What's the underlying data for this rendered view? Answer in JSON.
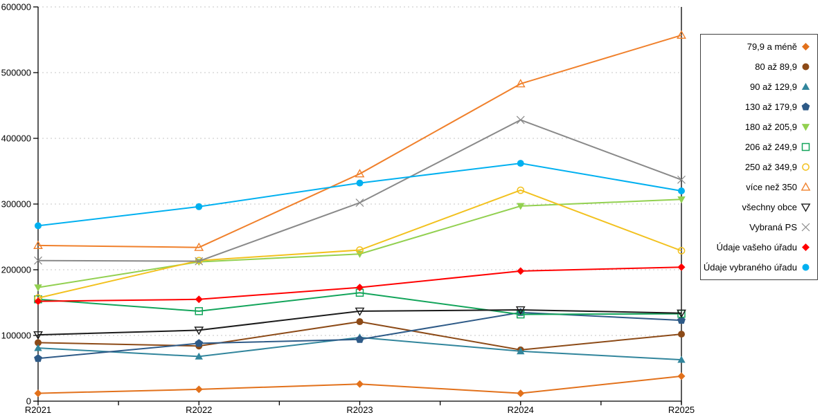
{
  "figure": {
    "background": "#ffffff",
    "grid_color": "#c6c6c6",
    "axis_color": "#000000",
    "legend_border_color": "#3f3f3f"
  },
  "chart_data": {
    "type": "line",
    "title": "",
    "xlabel": "",
    "ylabel": "",
    "x": [
      "R2021",
      "R2022",
      "R2023",
      "R2024",
      "R2025"
    ],
    "ylim": [
      0,
      600000
    ],
    "ytick_step": 100000,
    "y_tick_labels": [
      "0",
      "100000",
      "200000",
      "300000",
      "400000",
      "500000",
      "600000"
    ],
    "grid": "horizontal-dashed",
    "legend_position": "right-box",
    "series": [
      {
        "name": "79,9 a méně",
        "color": "#E2711B",
        "marker": "diamond-filled",
        "values": [
          12000,
          18000,
          26000,
          12000,
          38000
        ]
      },
      {
        "name": "80 až 89,9",
        "color": "#8C4A17",
        "marker": "circle-filled",
        "values": [
          89000,
          84000,
          121000,
          78000,
          102000
        ]
      },
      {
        "name": "90 až 129,9",
        "color": "#31859C",
        "marker": "triangle-up-filled",
        "values": [
          81000,
          68000,
          97000,
          76000,
          63000
        ]
      },
      {
        "name": "130 až 179,9",
        "color": "#2E5A87",
        "marker": "pentagon-filled",
        "values": [
          65000,
          88000,
          94000,
          135000,
          123000
        ]
      },
      {
        "name": "180 až 205,9",
        "color": "#92D050",
        "marker": "triangle-down-filled",
        "values": [
          173000,
          212000,
          224000,
          297000,
          307000
        ]
      },
      {
        "name": "206 až 249,9",
        "color": "#12A45A",
        "marker": "square-open",
        "values": [
          155000,
          137000,
          165000,
          132000,
          133000
        ]
      },
      {
        "name": "250 až 349,9",
        "color": "#F2C11E",
        "marker": "circle-open",
        "values": [
          157000,
          214000,
          230000,
          321000,
          229000
        ]
      },
      {
        "name": "více než 350",
        "color": "#F0802B",
        "marker": "triangle-up-open",
        "values": [
          237000,
          234000,
          346000,
          483000,
          557000
        ]
      },
      {
        "name": "všechny obce",
        "color": "#1A1A1A",
        "marker": "triangle-down-open",
        "values": [
          101000,
          108000,
          137000,
          139000,
          134000
        ]
      },
      {
        "name": "Vybraná PS",
        "color": "#898989",
        "marker": "x",
        "values": [
          214000,
          213000,
          302000,
          428000,
          337000
        ]
      },
      {
        "name": "Údaje vašeho úřadu",
        "color": "#FF0000",
        "marker": "diamond-filled",
        "values": [
          152000,
          155000,
          173000,
          198000,
          204000
        ]
      },
      {
        "name": "Údaje vybraného úřadu",
        "color": "#00B0F0",
        "marker": "circle-filled",
        "values": [
          267000,
          296000,
          332000,
          362000,
          320000
        ]
      }
    ]
  }
}
